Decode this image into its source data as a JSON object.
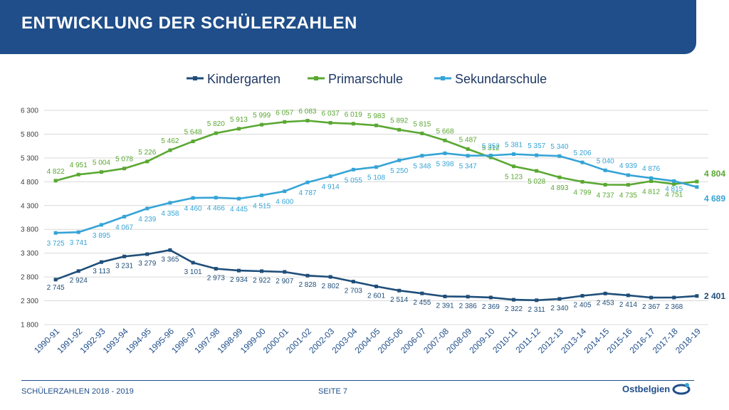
{
  "header": {
    "title": "ENTWICKLUNG DER SCHÜLERZAHLEN"
  },
  "footer": {
    "left": "SCHÜLERZAHLEN 2018 - 2019",
    "page": "SEITE 7",
    "logo": "Ostbelgien"
  },
  "chart_data": {
    "type": "line",
    "title": "",
    "xlabel": "",
    "ylabel": "",
    "ylim": [
      1800,
      6300
    ],
    "yticks": [
      1800,
      2300,
      2800,
      3300,
      3800,
      4300,
      4800,
      5300,
      5800,
      6300
    ],
    "ytick_labels": [
      "1 800",
      "2 300",
      "2 800",
      "3 300",
      "3 800",
      "4 300",
      "4 800",
      "5 300",
      "5 800",
      "6 300"
    ],
    "grid": true,
    "legend": "top",
    "categories": [
      "1990-91",
      "1991-92",
      "1992-93",
      "1993-94",
      "1994-95",
      "1995-96",
      "1996-97",
      "1997-98",
      "1998-99",
      "1999-00",
      "2000-01",
      "2001-02",
      "2002-03",
      "2003-04",
      "2004-05",
      "2005-06",
      "2006-07",
      "2007-08",
      "2008-09",
      "2009-10",
      "2010-11",
      "2011-12",
      "2012-13",
      "2013-14",
      "2014-15",
      "2015-16",
      "2016-17",
      "2017-18",
      "2018-19"
    ],
    "series": [
      {
        "name": "Kindergarten",
        "color": "#1f4e79",
        "values": [
          2745,
          2924,
          3113,
          3231,
          3279,
          3365,
          3101,
          2973,
          2934,
          2922,
          2907,
          2828,
          2802,
          2703,
          2601,
          2514,
          2455,
          2391,
          2386,
          2369,
          2322,
          2311,
          2340,
          2405,
          2453,
          2414,
          2367,
          2368,
          2401
        ],
        "labels": [
          "2 745",
          "2 924",
          "3 113",
          "3 231",
          "3 279",
          "3 365",
          "3 101",
          "2 973",
          "2 934",
          "2 922",
          "2 907",
          "2 828",
          "2 802",
          "2 703",
          "2 601",
          "2 514",
          "2 455",
          "2 391",
          "2 386",
          "2 369",
          "2 322",
          "2 311",
          "2 340",
          "2 405",
          "2 453",
          "2 414",
          "2 367",
          "2 368",
          "2 401"
        ]
      },
      {
        "name": "Primarschule",
        "color": "#5aa832",
        "values": [
          4822,
          4951,
          5004,
          5078,
          5226,
          5462,
          5648,
          5820,
          5913,
          5999,
          6057,
          6083,
          6037,
          6019,
          5983,
          5892,
          5815,
          5668,
          5487,
          5312,
          5123,
          5028,
          4893,
          4799,
          4737,
          4735,
          4812,
          4751,
          4804
        ],
        "labels": [
          "4 822",
          "4 951",
          "5 004",
          "5 078",
          "5 226",
          "5 462",
          "5 648",
          "5 820",
          "5 913",
          "5 999",
          "6 057",
          "6 083",
          "6 037",
          "6 019",
          "5 983",
          "5 892",
          "5 815",
          "5 668",
          "5 487",
          "5 312",
          "5 123",
          "5 028",
          "4 893",
          "4 799",
          "4 737",
          "4 735",
          "4 812",
          "4 751",
          "4 804"
        ]
      },
      {
        "name": "Sekundarschule",
        "color": "#35a4d6",
        "values": [
          3725,
          3741,
          3895,
          4067,
          4239,
          4358,
          4460,
          4466,
          4445,
          4515,
          4600,
          4787,
          4914,
          5055,
          5108,
          5250,
          5348,
          5398,
          5347,
          5352,
          5381,
          5357,
          5340,
          5206,
          5040,
          4939,
          4876,
          4815,
          4689
        ],
        "labels": [
          "3 725",
          "3 741",
          "3 895",
          "4 067",
          "4 239",
          "4 358",
          "4 460",
          "4 466",
          "4 445",
          "4 515",
          "4 600",
          "4 787",
          "4 914",
          "5 055",
          "5 108",
          "5 250",
          "5 348",
          "5 398",
          "5 347",
          "5 352",
          "5 381",
          "5 357",
          "5 340",
          "5 206",
          "5 040",
          "4 939",
          "4 876",
          "4 815",
          "4 689"
        ]
      }
    ]
  }
}
